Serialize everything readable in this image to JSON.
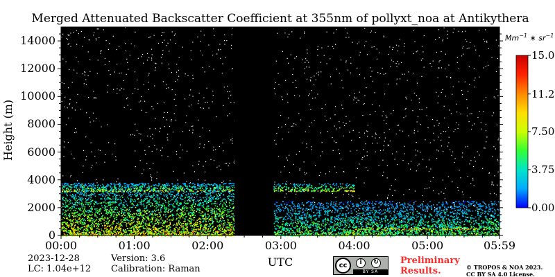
{
  "chart_data": {
    "type": "heatmap",
    "title": "Merged Attenuated Backscatter Coefficient at 355nm of pollyxt_noa at Antikythera",
    "xlabel": "UTC",
    "ylabel": "Height (m)",
    "x_ticks": [
      "00:00",
      "01:00",
      "02:00",
      "03:00",
      "04:00",
      "05:00",
      "05:59"
    ],
    "y_ticks": [
      "0",
      "2000",
      "4000",
      "6000",
      "8000",
      "10000",
      "12000",
      "14000"
    ],
    "xlim_minutes": [
      0,
      359
    ],
    "ylim_m": [
      0,
      15000
    ],
    "colorbar": {
      "unit": "Mm^-1*sr^-1",
      "range": [
        0,
        15
      ],
      "ticks": [
        "0.00",
        "3.75",
        "7.50",
        "11.2",
        "15.0"
      ],
      "colormap": [
        "#0000ff",
        "#00aaff",
        "#00e5c8",
        "#33ff33",
        "#ccff00",
        "#ffdd00",
        "#ff8800",
        "#ff2200",
        "#cc0000"
      ]
    },
    "data_gaps": [
      {
        "start_min": 142,
        "end_min": 174
      }
    ],
    "layers": [
      {
        "name": "boundary-layer-aerosol",
        "start_min": 0,
        "end_min": 142,
        "base_m": 0,
        "top_m": 3800,
        "peak_value": 12
      },
      {
        "name": "elevated-aerosol-layer",
        "start_min": 0,
        "end_min": 240,
        "base_m": 3200,
        "top_m": 3800,
        "peak_value": 11
      },
      {
        "name": "boundary-layer-aerosol-late",
        "start_min": 174,
        "end_min": 359,
        "base_m": 0,
        "top_m": 2500,
        "peak_value": 8
      },
      {
        "name": "low-cloud",
        "start_min": 240,
        "end_min": 359,
        "base_m": 450,
        "top_m": 700,
        "peak_value": 15
      }
    ],
    "colors": {
      "background": "#000000",
      "noise": "#ffffff"
    },
    "grid": false,
    "legend": "colorbar-right"
  },
  "info": {
    "date": "2023-12-28",
    "version": "Version: 3.6",
    "lc": "LC: 1.04e+12",
    "calibration": "Calibration: Raman"
  },
  "license": {
    "preliminary_line1": "Preliminary",
    "preliminary_line2": "Results.",
    "copyright_line1": "© TROPOS & NOA 2023.",
    "copyright_line2": "CC BY SA 4.0 License.",
    "badge_cc": "cc",
    "badge_by": "BY",
    "badge_sa": "SA"
  }
}
